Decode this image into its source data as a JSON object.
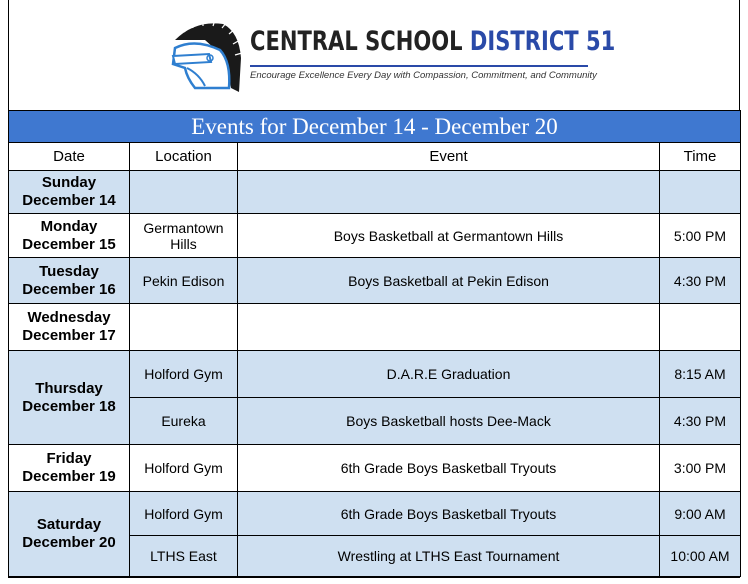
{
  "logo": {
    "title_dark": "CENTRAL SCHOOL ",
    "title_blue": "DISTRICT 51",
    "tagline": "Encourage Excellence Every Day with Compassion, Commitment, and Community"
  },
  "colors": {
    "header_blue": "#3f78d0",
    "row_shade": "#cfe0f1",
    "logo_blue": "#2a4aa8"
  },
  "table": {
    "title": "Events for December 14 - December 20",
    "headers": [
      "Date",
      "Location",
      "Event",
      "Time"
    ],
    "days": [
      {
        "day": "Sunday",
        "date": "December 14",
        "events": [
          {
            "location": "",
            "event": "",
            "time": ""
          }
        ]
      },
      {
        "day": "Monday",
        "date": "December 15",
        "events": [
          {
            "location": "Germantown Hills",
            "event": "Boys Basketball at Germantown Hills",
            "time": "5:00 PM"
          }
        ]
      },
      {
        "day": "Tuesday",
        "date": "December 16",
        "events": [
          {
            "location": "Pekin Edison",
            "event": "Boys Basketball at Pekin Edison",
            "time": "4:30 PM"
          }
        ]
      },
      {
        "day": "Wednesday",
        "date": "December 17",
        "events": [
          {
            "location": "",
            "event": "",
            "time": ""
          }
        ]
      },
      {
        "day": "Thursday",
        "date": "December 18",
        "events": [
          {
            "location": "Holford Gym",
            "event": "D.A.R.E Graduation",
            "time": "8:15 AM"
          },
          {
            "location": "Eureka",
            "event": "Boys Basketball hosts Dee-Mack",
            "time": "4:30 PM"
          }
        ]
      },
      {
        "day": "Friday",
        "date": "December 19",
        "events": [
          {
            "location": "Holford Gym",
            "event": "6th Grade Boys Basketball Tryouts",
            "time": "3:00 PM"
          }
        ]
      },
      {
        "day": "Saturday",
        "date": "December 20",
        "events": [
          {
            "location": "Holford Gym",
            "event": "6th Grade Boys Basketball Tryouts",
            "time": "9:00 AM"
          },
          {
            "location": "LTHS East",
            "event": "Wrestling at LTHS East Tournament",
            "time": "10:00 AM"
          }
        ]
      }
    ]
  }
}
